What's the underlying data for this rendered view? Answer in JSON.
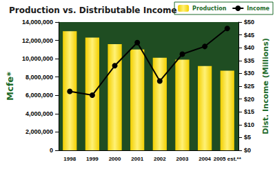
{
  "chart_data": {
    "type": "bar",
    "title": "Production vs. Distributable Income",
    "categories": [
      "1998",
      "1999",
      "2000",
      "2001",
      "2002",
      "2003",
      "2004",
      "2005 est.**"
    ],
    "series": [
      {
        "name": "Production",
        "type": "bar",
        "color": "#f2cf00",
        "values": [
          13000000,
          12300000,
          11600000,
          11000000,
          10100000,
          9900000,
          9200000,
          8700000
        ]
      },
      {
        "name": "Income",
        "type": "line",
        "axis": "y2",
        "color": "#000000",
        "marker": "circle",
        "values": [
          23,
          21.5,
          33,
          42,
          27,
          37.5,
          40.5,
          47.5
        ]
      }
    ],
    "y_label": "Mcfe*",
    "y2_label": "Dist. Income (Millions)",
    "ylim": [
      0,
      14000000
    ],
    "yticks": [
      0,
      {
        "value": 2000000,
        "label": "2,000,000"
      },
      {
        "value": 4000000,
        "label": "4,000,000"
      },
      {
        "value": 6000000,
        "label": "6,000,000"
      },
      {
        "value": 8000000,
        "label": "8,000,000"
      },
      {
        "value": 10000000,
        "label": "10,000,000"
      },
      {
        "value": 12000000,
        "label": "12,000,000"
      },
      {
        "value": 14000000,
        "label": "14,000,000"
      }
    ],
    "y2lim": [
      0,
      50
    ],
    "y2ticks": [
      {
        "value": 0,
        "label": "$0"
      },
      {
        "value": 5,
        "label": "$5"
      },
      {
        "value": 10,
        "label": "$10"
      },
      {
        "value": 15,
        "label": "$15"
      },
      {
        "value": 20,
        "label": "$20"
      },
      {
        "value": 25,
        "label": "$25"
      },
      {
        "value": 30,
        "label": "$30"
      },
      {
        "value": 35,
        "label": "$35"
      },
      {
        "value": 40,
        "label": "$40"
      },
      {
        "value": 45,
        "label": "$45"
      },
      {
        "value": 50,
        "label": "$50"
      }
    ],
    "grid": false,
    "legend": "upper right"
  }
}
